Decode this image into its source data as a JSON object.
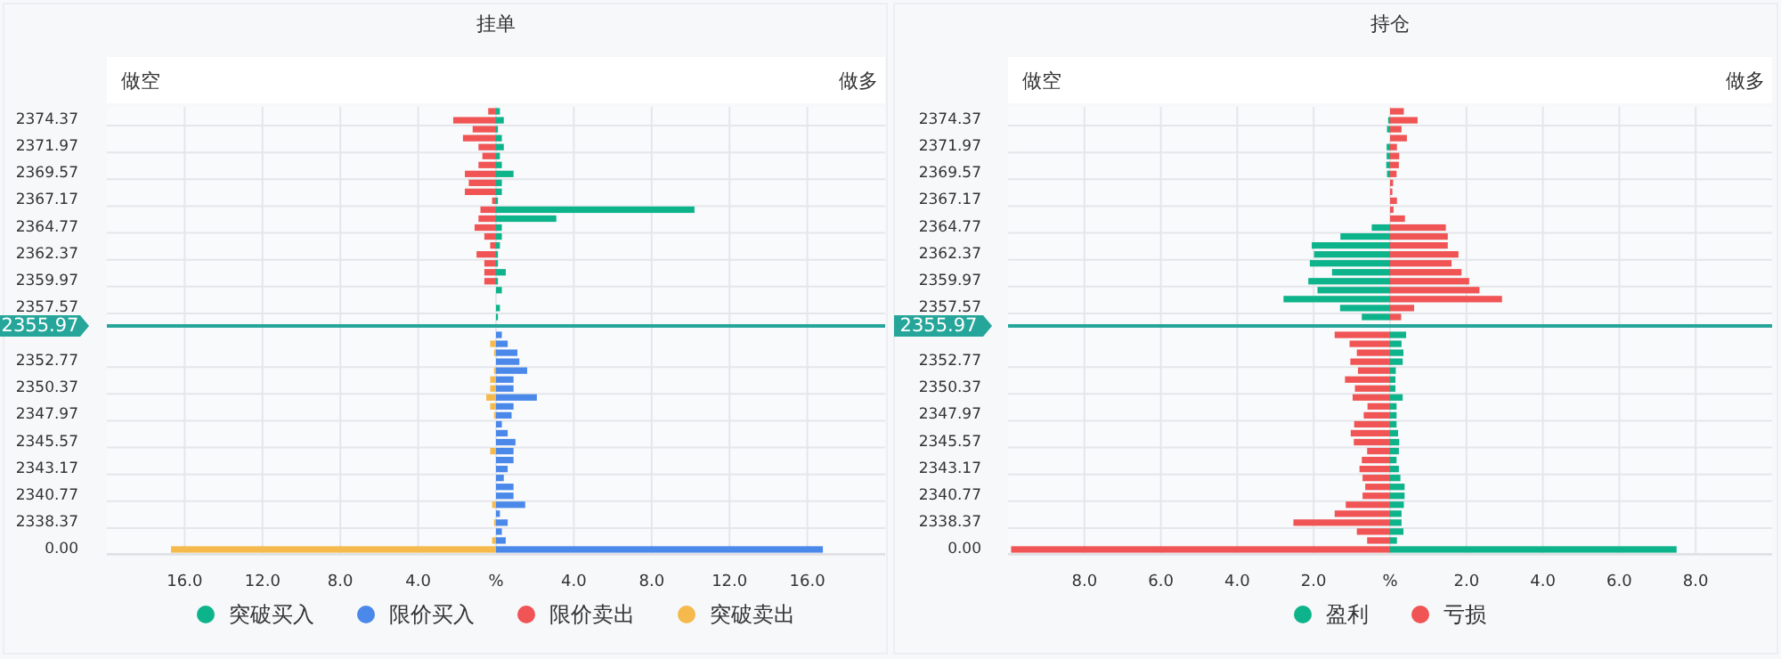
{
  "chart_data": [
    {
      "type": "bar",
      "orientation": "horizontal",
      "title": "挂单",
      "annotations": [
        "做空",
        "做多"
      ],
      "categories": [
        null,
        "2374.37",
        null,
        null,
        "2371.97",
        null,
        null,
        "2369.57",
        null,
        null,
        "2367.17",
        null,
        null,
        "2364.77",
        null,
        null,
        "2362.37",
        null,
        null,
        "2359.97",
        null,
        null,
        "2357.57",
        null,
        "2355.97",
        null,
        null,
        null,
        "2352.77",
        null,
        null,
        "2350.37",
        null,
        null,
        "2347.97",
        null,
        null,
        "2345.57",
        null,
        null,
        "2343.17",
        null,
        null,
        "2340.77",
        null,
        null,
        "2338.37",
        null,
        null,
        "0.00"
      ],
      "stacked": true,
      "series": [
        {
          "name": "突破买入",
          "color": "#0db38a",
          "values": [
            0.2,
            0.4,
            0.1,
            0.3,
            0.4,
            0.2,
            0.3,
            0.9,
            0.3,
            0.3,
            0.1,
            10.2,
            3.1,
            0.3,
            0.3,
            0.2,
            0.1,
            0.1,
            0.5,
            0.1,
            0.3,
            null,
            0.2,
            0.1,
            null,
            null,
            null,
            null,
            null,
            null,
            null,
            null,
            null,
            null,
            null,
            null,
            null,
            null,
            null,
            null,
            null,
            null,
            null,
            null,
            null,
            null,
            null,
            null,
            null,
            null
          ]
        },
        {
          "name": "限价买入",
          "color": "#4a88ea",
          "values": [
            null,
            null,
            null,
            null,
            null,
            null,
            null,
            null,
            null,
            null,
            null,
            null,
            null,
            null,
            null,
            null,
            null,
            null,
            null,
            null,
            null,
            null,
            null,
            null,
            null,
            0.3,
            0.6,
            1.1,
            1.2,
            1.6,
            0.9,
            0.9,
            2.1,
            0.9,
            0.8,
            0.3,
            0.6,
            1.0,
            0.9,
            0.9,
            0.6,
            0.4,
            0.9,
            0.9,
            1.5,
            0.2,
            0.6,
            0.3,
            0.5,
            16.8
          ]
        },
        {
          "name": "限价卖出",
          "color": "#f05454",
          "values": [
            -0.4,
            -2.2,
            -1.2,
            -1.7,
            -0.9,
            -0.7,
            -0.9,
            -1.6,
            -1.4,
            -1.6,
            -0.2,
            -0.8,
            -0.9,
            -1.1,
            -0.6,
            -0.3,
            -1.0,
            -0.6,
            -0.6,
            -0.6,
            null,
            null,
            null,
            null,
            null,
            null,
            null,
            null,
            null,
            null,
            null,
            null,
            null,
            null,
            null,
            null,
            null,
            null,
            null,
            null,
            null,
            null,
            null,
            null,
            null,
            null,
            null,
            null,
            null,
            null
          ]
        },
        {
          "name": "突破卖出",
          "color": "#f5b94c",
          "values": [
            null,
            null,
            null,
            null,
            null,
            null,
            null,
            null,
            null,
            null,
            null,
            null,
            null,
            null,
            null,
            null,
            null,
            null,
            null,
            null,
            null,
            null,
            null,
            null,
            null,
            null,
            -0.3,
            -0.1,
            null,
            -0.1,
            -0.3,
            -0.3,
            -0.5,
            -0.3,
            -0.1,
            null,
            null,
            null,
            -0.3,
            null,
            null,
            null,
            null,
            null,
            -0.2,
            null,
            -0.1,
            null,
            -0.2,
            -16.7
          ]
        }
      ],
      "xlim": [
        -20,
        20
      ],
      "xticks": [
        {
          "value": -16,
          "label": "16.0"
        },
        {
          "value": -12,
          "label": "12.0"
        },
        {
          "value": -8,
          "label": "8.0"
        },
        {
          "value": -4,
          "label": "4.0"
        },
        {
          "value": 0,
          "label": "%"
        },
        {
          "value": 4,
          "label": "4.0"
        },
        {
          "value": 8,
          "label": "8.0"
        },
        {
          "value": 12,
          "label": "12.0"
        },
        {
          "value": 16,
          "label": "16.0"
        }
      ],
      "grid": true,
      "legend": "bottom",
      "ref_lines": [
        {
          "axis": "y",
          "value": "2355.97",
          "color": "#26a69a"
        }
      ]
    },
    {
      "type": "bar",
      "orientation": "horizontal",
      "title": "持仓",
      "annotations": [
        "做空",
        "做多"
      ],
      "categories": [
        null,
        "2374.37",
        null,
        null,
        "2371.97",
        null,
        null,
        "2369.57",
        null,
        null,
        "2367.17",
        null,
        null,
        "2364.77",
        null,
        null,
        "2362.37",
        null,
        null,
        "2359.97",
        null,
        null,
        "2357.57",
        null,
        "2355.97",
        null,
        null,
        null,
        "2352.77",
        null,
        null,
        "2350.37",
        null,
        null,
        "2347.97",
        null,
        null,
        "2345.57",
        null,
        null,
        "2343.17",
        null,
        null,
        "2340.77",
        null,
        null,
        "2338.37",
        null,
        null,
        "0.00"
      ],
      "stacked": true,
      "series": [
        {
          "name": "盈利",
          "color": "#0db38a",
          "values": [
            null,
            -0.05,
            -0.08,
            null,
            -0.09,
            -0.09,
            -0.1,
            -0.08,
            null,
            null,
            null,
            null,
            null,
            -0.48,
            -1.3,
            -2.05,
            -1.99,
            -2.1,
            -1.52,
            -2.14,
            -1.9,
            -2.79,
            -1.31,
            -0.74,
            null,
            0.42,
            0.3,
            0.35,
            0.33,
            0.15,
            0.14,
            0.14,
            0.33,
            0.17,
            0.17,
            0.17,
            0.21,
            0.24,
            0.23,
            0.17,
            0.23,
            0.27,
            0.38,
            0.38,
            0.36,
            0.3,
            0.3,
            0.35,
            0.18,
            7.5
          ]
        },
        {
          "name": "亏损",
          "color": "#f05454",
          "values": [
            0.36,
            0.72,
            0.3,
            0.44,
            0.18,
            0.24,
            0.23,
            0.17,
            0.08,
            0.06,
            0.18,
            0.09,
            0.39,
            1.46,
            1.51,
            1.51,
            1.79,
            1.61,
            1.87,
            2.07,
            2.34,
            2.93,
            0.63,
            0.29,
            null,
            -1.45,
            -1.06,
            -0.87,
            -1.04,
            -0.84,
            -1.18,
            -0.92,
            -0.98,
            -0.59,
            -0.69,
            -0.94,
            -1.03,
            -0.95,
            -0.6,
            -0.74,
            -0.8,
            -0.72,
            -0.65,
            -0.72,
            -1.16,
            -1.45,
            -2.53,
            -0.87,
            -0.6,
            -9.92
          ]
        }
      ],
      "xlim": [
        -10,
        10
      ],
      "xticks": [
        {
          "value": -8,
          "label": "8.0"
        },
        {
          "value": -6,
          "label": "6.0"
        },
        {
          "value": -4,
          "label": "4.0"
        },
        {
          "value": -2,
          "label": "2.0"
        },
        {
          "value": 0,
          "label": "%"
        },
        {
          "value": 2,
          "label": "2.0"
        },
        {
          "value": 4,
          "label": "4.0"
        },
        {
          "value": 6,
          "label": "6.0"
        },
        {
          "value": 8,
          "label": "8.0"
        }
      ],
      "grid": true,
      "legend": "bottom",
      "ref_lines": [
        {
          "axis": "y",
          "value": "2355.97",
          "color": "#26a69a"
        }
      ]
    }
  ]
}
